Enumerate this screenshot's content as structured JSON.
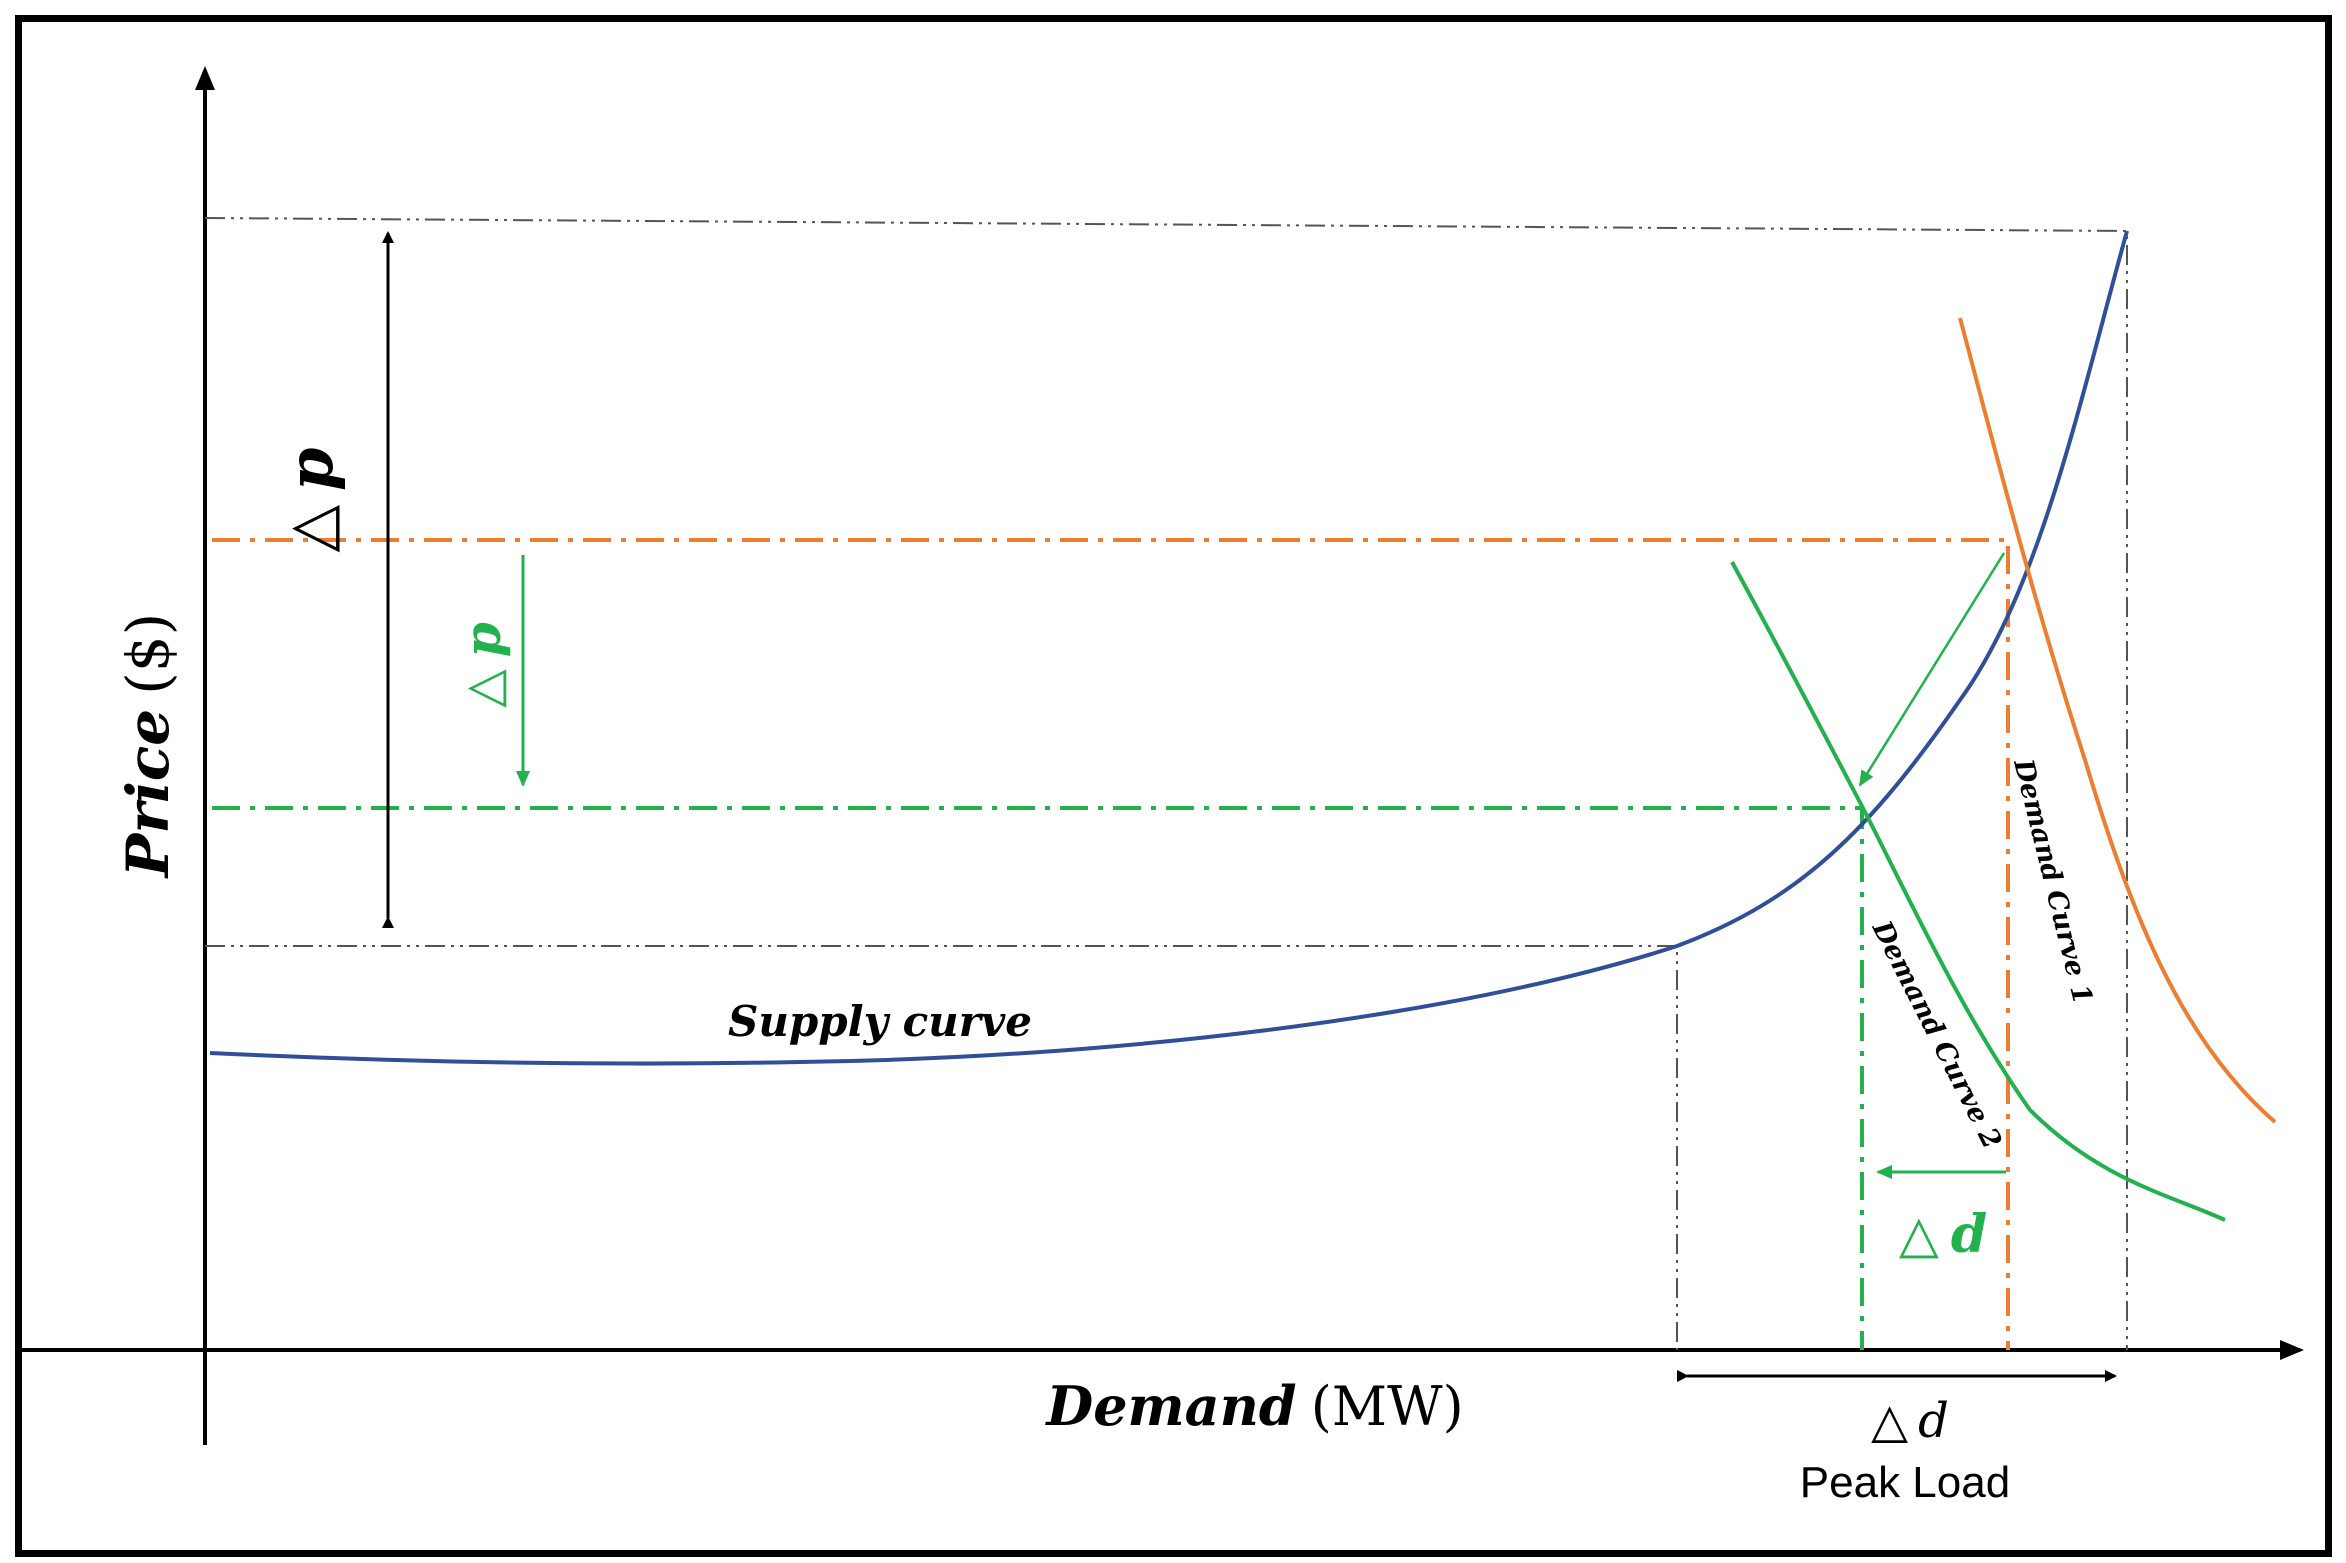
{
  "axes": {
    "y_label_main": "Price",
    "y_label_unit": "($)",
    "x_label_main": "Demand",
    "x_label_unit": "(MW)"
  },
  "curves": {
    "supply": "Supply curve",
    "demand1": "Demand Curve 1",
    "demand2": "Demand Curve 2"
  },
  "annotations": {
    "delta_p_total_symbol": "△",
    "delta_p_total_var": "p",
    "delta_p_green_symbol": "△",
    "delta_p_green_var": "p",
    "delta_d_green_symbol": "△",
    "delta_d_green_var": "d",
    "delta_d_peak_symbol": "△",
    "delta_d_peak_var": "d",
    "peak_load": "Peak Load"
  },
  "colors": {
    "axis": "#000000",
    "supply": "#2f4f9a",
    "demand1": "#ed7d31",
    "demand2": "#22b14c",
    "guide": "#555555",
    "text": "#000000"
  }
}
